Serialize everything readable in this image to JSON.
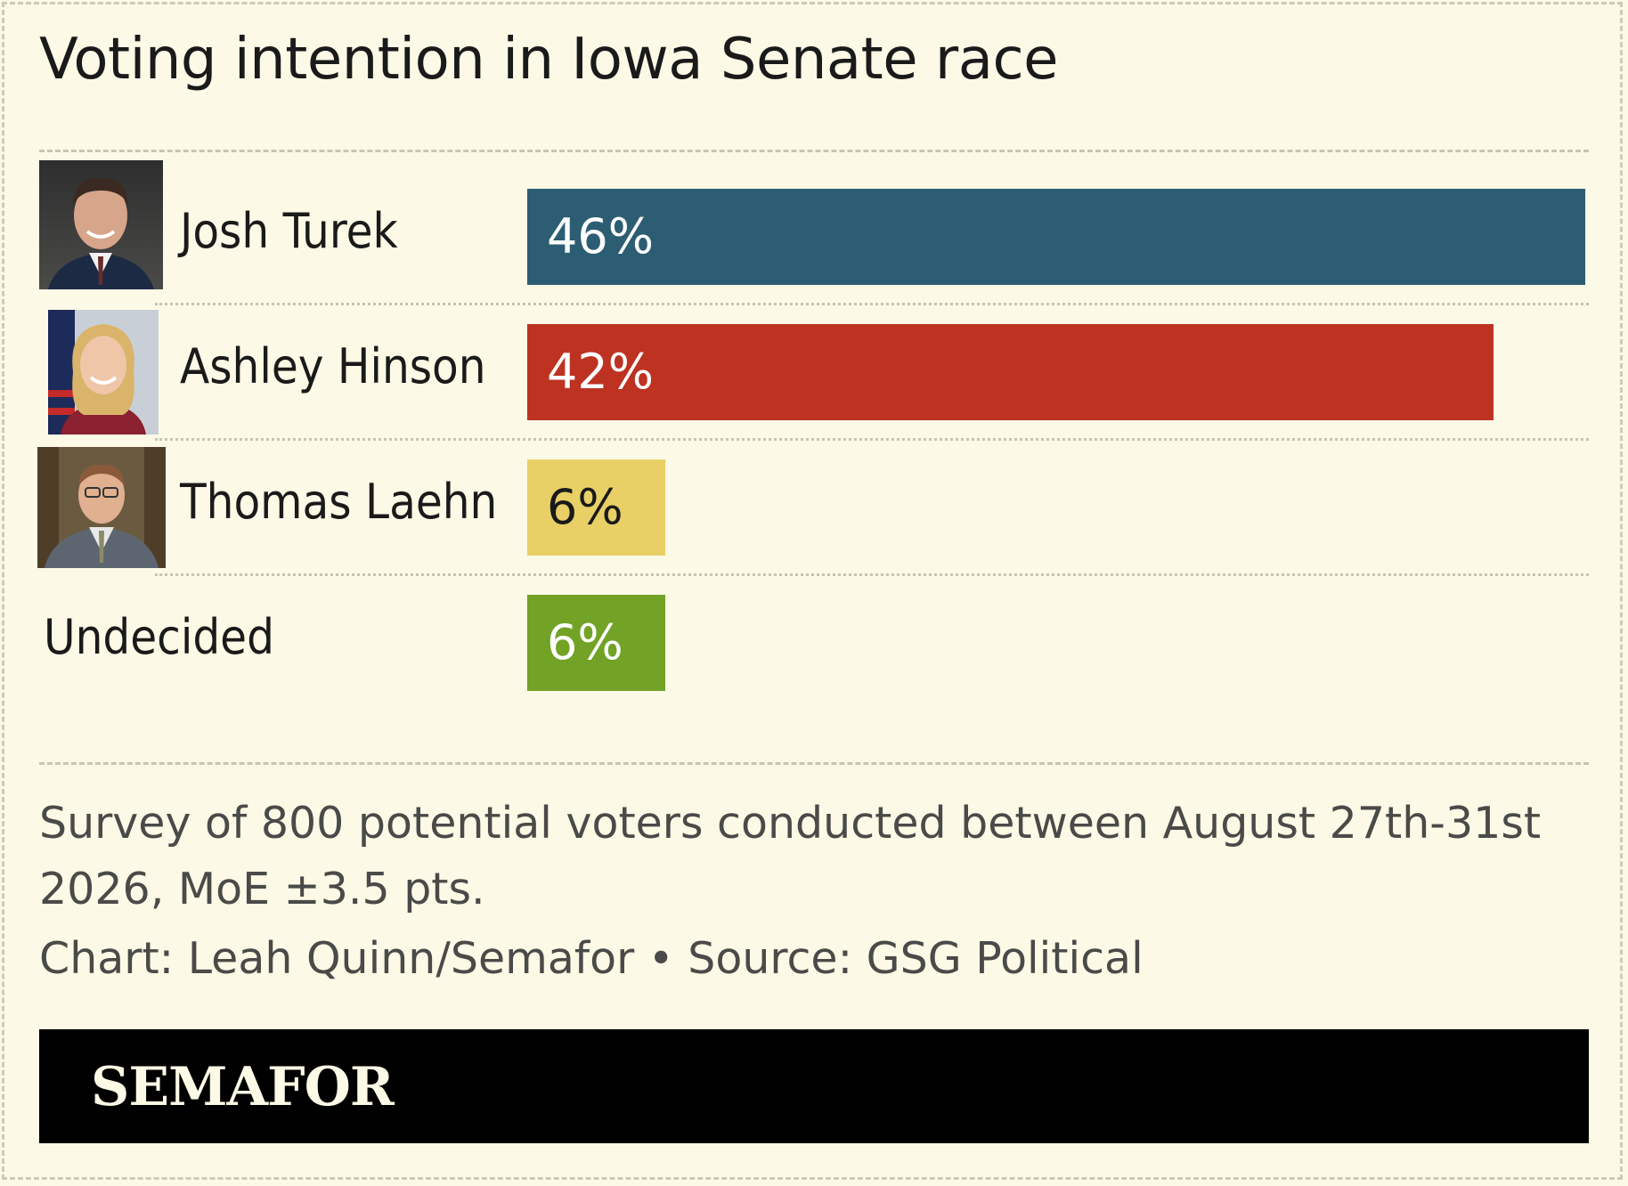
{
  "title": "Voting intention in Iowa Senate race",
  "chart_data": {
    "type": "bar",
    "orientation": "horizontal",
    "categories": [
      "Josh Turek",
      "Ashley Hinson",
      "Thomas Laehn",
      "Undecided"
    ],
    "values": [
      46,
      42,
      6,
      6
    ],
    "value_labels": [
      "46%",
      "42%",
      "6%",
      "6%"
    ],
    "colors": [
      "#2c5d73",
      "#bd3221",
      "#e8d067",
      "#72a226"
    ],
    "label_colors": [
      "#ffffff",
      "#ffffff",
      "#1a1a1a",
      "#ffffff"
    ],
    "xlim": [
      0,
      46
    ],
    "unit": "%",
    "grid": false
  },
  "note": "Survey of 800 potential voters conducted between August 27th-31st 2026, MoE ±3.5 pts.",
  "credit": "Chart: Leah Quinn/Semafor • Source: GSG Political",
  "footer": {
    "logo": "SEMAFOR"
  },
  "photos": [
    "portrait-man-dark-suit",
    "portrait-woman-flag-background",
    "portrait-man-grey-suit"
  ]
}
